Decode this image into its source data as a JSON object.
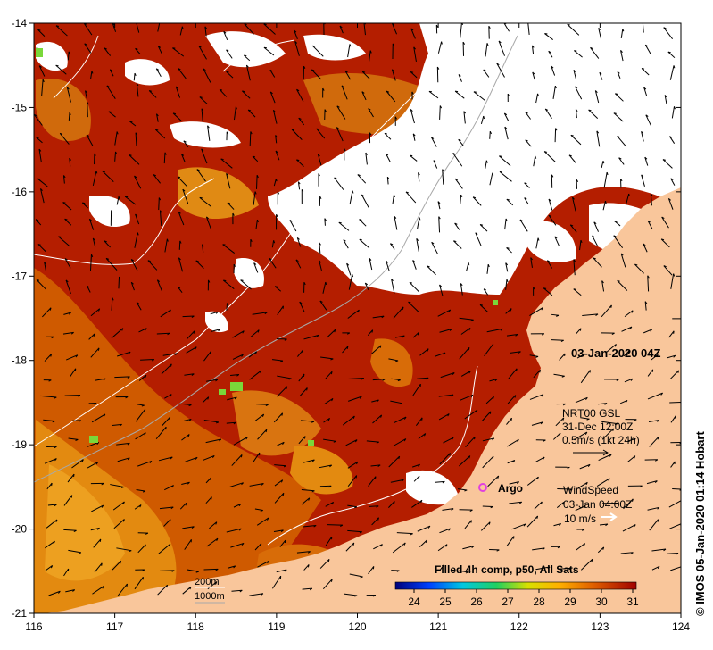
{
  "map": {
    "timestamp": "03-Jan-2020 04Z",
    "credit": "© IMOS 05-Jan-2020 01:14 Hobart",
    "argo_label": "Argo",
    "x_ticks": [
      "116",
      "117",
      "118",
      "119",
      "120",
      "121",
      "122",
      "123",
      "124"
    ],
    "y_ticks": [
      "-14",
      "-15",
      "-16",
      "-17",
      "-18",
      "-19",
      "-20",
      "-21"
    ],
    "bathymetry_labels": [
      "200m",
      "1000m"
    ],
    "current_legend": {
      "line1": "NRT00 GSL",
      "line2": "31-Dec 12:00Z",
      "line3": "0.5m/s (1kt 24h)"
    },
    "wind_legend": {
      "line1": "WindSpeed",
      "line2": "03-Jan 04:00Z",
      "line3": "10 m/s"
    },
    "colorbar": {
      "title": "Filled 4h comp, p50, All Sats",
      "ticks": [
        "24",
        "25",
        "26",
        "27",
        "28",
        "29",
        "30",
        "31"
      ]
    },
    "colors": {
      "land": "#f9c69b",
      "cloud": "#ffffff",
      "sst_warm": "#b41e00",
      "sst_mid": "#d05a00",
      "sst_cool": "#e8920e",
      "argo": "#e040e0"
    }
  }
}
